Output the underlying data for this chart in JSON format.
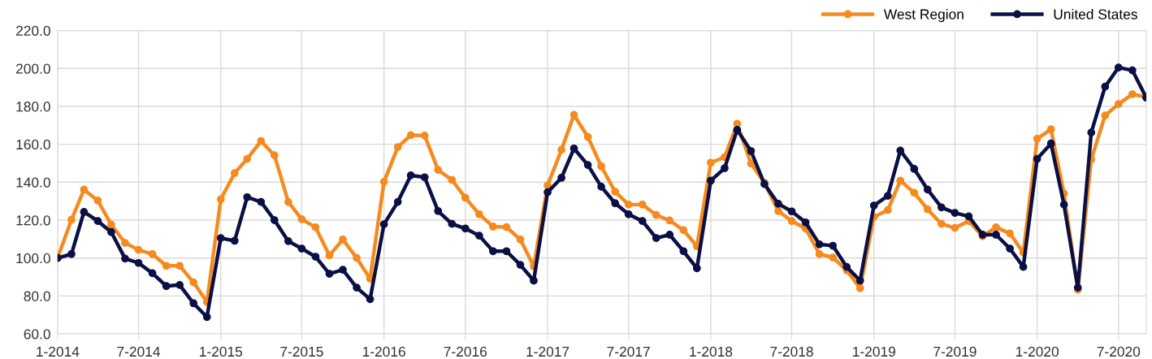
{
  "chart_data": {
    "type": "line",
    "x": [
      "2014-01",
      "2014-02",
      "2014-03",
      "2014-04",
      "2014-05",
      "2014-06",
      "2014-07",
      "2014-08",
      "2014-09",
      "2014-10",
      "2014-11",
      "2014-12",
      "2015-01",
      "2015-02",
      "2015-03",
      "2015-04",
      "2015-05",
      "2015-06",
      "2015-07",
      "2015-08",
      "2015-09",
      "2015-10",
      "2015-11",
      "2015-12",
      "2016-01",
      "2016-02",
      "2016-03",
      "2016-04",
      "2016-05",
      "2016-06",
      "2016-07",
      "2016-08",
      "2016-09",
      "2016-10",
      "2016-11",
      "2016-12",
      "2017-01",
      "2017-02",
      "2017-03",
      "2017-04",
      "2017-05",
      "2017-06",
      "2017-07",
      "2017-08",
      "2017-09",
      "2017-10",
      "2017-11",
      "2017-12",
      "2018-01",
      "2018-02",
      "2018-03",
      "2018-04",
      "2018-05",
      "2018-06",
      "2018-07",
      "2018-08",
      "2018-09",
      "2018-10",
      "2018-11",
      "2018-12",
      "2019-01",
      "2019-02",
      "2019-03",
      "2019-04",
      "2019-05",
      "2019-06",
      "2019-07",
      "2019-08",
      "2019-09",
      "2019-10",
      "2019-11",
      "2019-12",
      "2020-01",
      "2020-02",
      "2020-03",
      "2020-04",
      "2020-05",
      "2020-06",
      "2020-07",
      "2020-08",
      "2020-09"
    ],
    "series": [
      {
        "name": "West Region",
        "color": "#f58a1f",
        "values": [
          100.0,
          120.2,
          136.1,
          130.3,
          117.6,
          108.0,
          104.3,
          102.1,
          95.9,
          95.9,
          87.2,
          76.8,
          131.0,
          144.8,
          152.3,
          161.7,
          154.2,
          129.6,
          120.5,
          116.2,
          101.4,
          109.8,
          100.0,
          89.1,
          140.2,
          158.5,
          164.8,
          164.6,
          146.5,
          141.2,
          131.8,
          123.1,
          116.6,
          116.3,
          109.8,
          95.6,
          138.3,
          157.1,
          175.5,
          163.9,
          148.4,
          135.0,
          128.2,
          128.2,
          122.7,
          119.8,
          114.7,
          106.2,
          150.3,
          153.2,
          170.8,
          149.9,
          139.7,
          124.8,
          119.5,
          115.6,
          102.1,
          100.3,
          93.5,
          84.1,
          121.7,
          125.3,
          140.8,
          134.4,
          125.7,
          118.0,
          115.9,
          119.5,
          111.5,
          116.2,
          113.0,
          102.9,
          162.9,
          167.9,
          134.0,
          83.3,
          152.0,
          175.2,
          181.2,
          186.4,
          184.9
        ]
      },
      {
        "name": "United States",
        "color": "#0a0f45",
        "values": [
          100.0,
          102.1,
          124.3,
          119.5,
          113.7,
          99.7,
          97.4,
          92.0,
          85.2,
          85.8,
          76.1,
          68.9,
          110.5,
          109.1,
          132.1,
          129.6,
          120.0,
          108.9,
          105.0,
          100.7,
          91.7,
          93.8,
          84.4,
          78.3,
          117.8,
          129.6,
          143.6,
          142.6,
          124.8,
          118.0,
          115.6,
          111.8,
          103.6,
          103.6,
          96.4,
          88.1,
          134.7,
          142.3,
          157.8,
          149.1,
          137.6,
          128.9,
          123.1,
          119.5,
          110.5,
          112.3,
          103.6,
          94.6,
          140.8,
          147.4,
          167.6,
          156.4,
          139.0,
          128.6,
          124.6,
          118.8,
          107.2,
          106.5,
          95.3,
          88.1,
          127.7,
          132.8,
          156.7,
          147.0,
          136.1,
          126.7,
          123.8,
          122.0,
          112.3,
          112.3,
          105.0,
          95.3,
          152.3,
          160.4,
          128.2,
          84.4,
          166.2,
          190.4,
          200.5,
          199.0,
          184.6
        ]
      }
    ],
    "xlim": [
      "2014-01",
      "2020-09"
    ],
    "xticks": [
      {
        "value": "2014-01",
        "label": "1-2014"
      },
      {
        "value": "2014-07",
        "label": "7-2014"
      },
      {
        "value": "2015-01",
        "label": "1-2015"
      },
      {
        "value": "2015-07",
        "label": "7-2015"
      },
      {
        "value": "2016-01",
        "label": "1-2016"
      },
      {
        "value": "2016-07",
        "label": "7-2016"
      },
      {
        "value": "2017-01",
        "label": "1-2017"
      },
      {
        "value": "2017-07",
        "label": "7-2017"
      },
      {
        "value": "2018-01",
        "label": "1-2018"
      },
      {
        "value": "2018-07",
        "label": "7-2018"
      },
      {
        "value": "2019-01",
        "label": "1-2019"
      },
      {
        "value": "2019-07",
        "label": "7-2019"
      },
      {
        "value": "2020-01",
        "label": "1-2020"
      },
      {
        "value": "2020-07",
        "label": "7-2020"
      }
    ],
    "ylim": [
      60,
      220
    ],
    "yticks": [
      {
        "value": 60,
        "label": "60.0"
      },
      {
        "value": 80,
        "label": "80.0"
      },
      {
        "value": 100,
        "label": "100.0"
      },
      {
        "value": 120,
        "label": "120.0"
      },
      {
        "value": 140,
        "label": "140.0"
      },
      {
        "value": 160,
        "label": "160.0"
      },
      {
        "value": 180,
        "label": "180.0"
      },
      {
        "value": 200,
        "label": "200.0"
      },
      {
        "value": 220,
        "label": "220.0"
      }
    ],
    "grid": true,
    "legend": "top right",
    "marker": "circle",
    "line_style": "solid"
  }
}
